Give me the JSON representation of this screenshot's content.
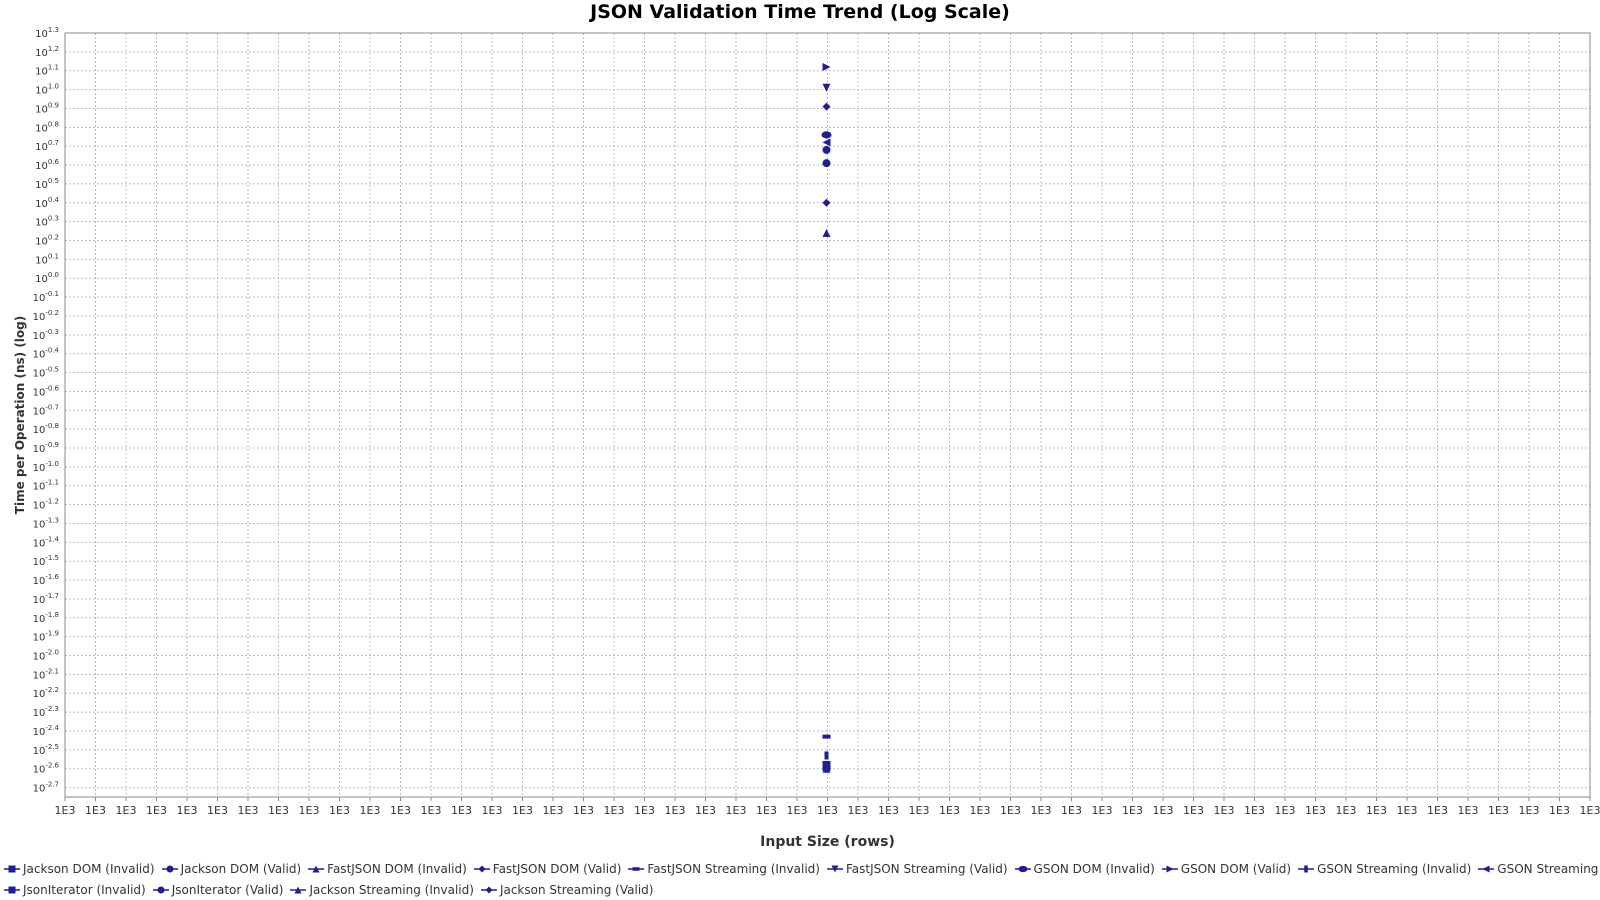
{
  "chart_data": {
    "type": "scatter",
    "title": "JSON Validation Time Trend (Log Scale)",
    "xlabel": "Input Size (rows)",
    "ylabel": "Time per Operation (ns) (log)",
    "y_scale": "log10",
    "y_tick_exponents": [
      "1.3",
      "1.2",
      "1.1",
      "1.0",
      "0.9",
      "0.8",
      "0.7",
      "0.6",
      "0.5",
      "0.4",
      "0.3",
      "0.2",
      "0.1",
      "0.0",
      "-0.1",
      "-0.2",
      "-0.3",
      "-0.4",
      "-0.5",
      "-0.6",
      "-0.7",
      "-0.8",
      "-0.9",
      "-1.0",
      "-1.1",
      "-1.2",
      "-1.3",
      "-1.4",
      "-1.5",
      "-1.6",
      "-1.7",
      "-1.8",
      "-1.9",
      "-2.0",
      "-2.1",
      "-2.2",
      "-2.3",
      "-2.4",
      "-2.5",
      "-2.6",
      "-2.7"
    ],
    "y_tick_base": "10",
    "x_tick_labels": [
      "1E3",
      "1E3",
      "1E3",
      "1E3",
      "1E3",
      "1E3",
      "1E3",
      "1E3",
      "1E3",
      "1E3",
      "1E3",
      "1E3",
      "1E3",
      "1E3",
      "1E3",
      "1E3",
      "1E3",
      "1E3",
      "1E3",
      "1E3",
      "1E3",
      "1E3",
      "1E3",
      "1E3",
      "1E3",
      "1E3",
      "1E3",
      "1E3",
      "1E3",
      "1E3",
      "1E3",
      "1E3",
      "1E3",
      "1E3",
      "1E3",
      "1E3",
      "1E3",
      "1E3",
      "1E3",
      "1E3",
      "1E3",
      "1E3",
      "1E3",
      "1E3",
      "1E3",
      "1E3",
      "1E3",
      "1E3",
      "1E3",
      "1E3",
      "1E3"
    ],
    "grid": true,
    "legend_position": "bottom",
    "series_color": "#1f1f8f",
    "series": [
      {
        "name": "Jackson DOM (Invalid)",
        "shape": "square",
        "x": 1000,
        "y_log10": -2.58
      },
      {
        "name": "Jackson DOM (Valid)",
        "shape": "circle",
        "x": 1000,
        "y_log10": 0.61
      },
      {
        "name": "FastJSON DOM (Invalid)",
        "shape": "triangle-up",
        "x": 1000,
        "y_log10": 0.24
      },
      {
        "name": "FastJSON DOM (Valid)",
        "shape": "diamond",
        "x": 1000,
        "y_log10": 0.91
      },
      {
        "name": "FastJSON Streaming (Invalid)",
        "shape": "hbar",
        "x": 1000,
        "y_log10": -2.43
      },
      {
        "name": "FastJSON Streaming (Valid)",
        "shape": "triangle-down",
        "x": 1000,
        "y_log10": 1.01
      },
      {
        "name": "GSON DOM (Invalid)",
        "shape": "ellipse-h",
        "x": 1000,
        "y_log10": 0.76
      },
      {
        "name": "GSON DOM (Valid)",
        "shape": "triangle-right",
        "x": 1000,
        "y_log10": 1.12
      },
      {
        "name": "GSON Streaming (Invalid)",
        "shape": "vbar",
        "x": 1000,
        "y_log10": -2.53
      },
      {
        "name": "GSON Streaming (Valid)",
        "shape": "triangle-left",
        "x": 1000,
        "y_log10": 0.72
      },
      {
        "name": "JsonIterator (Invalid)",
        "shape": "square",
        "x": 1000,
        "y_log10": -2.59
      },
      {
        "name": "JsonIterator (Valid)",
        "shape": "circle",
        "x": 1000,
        "y_log10": 0.68
      },
      {
        "name": "Jackson Streaming (Invalid)",
        "shape": "triangle-up",
        "x": 1000,
        "y_log10": -2.6
      },
      {
        "name": "Jackson Streaming (Valid)",
        "shape": "diamond",
        "x": 1000,
        "y_log10": 0.4
      }
    ]
  }
}
